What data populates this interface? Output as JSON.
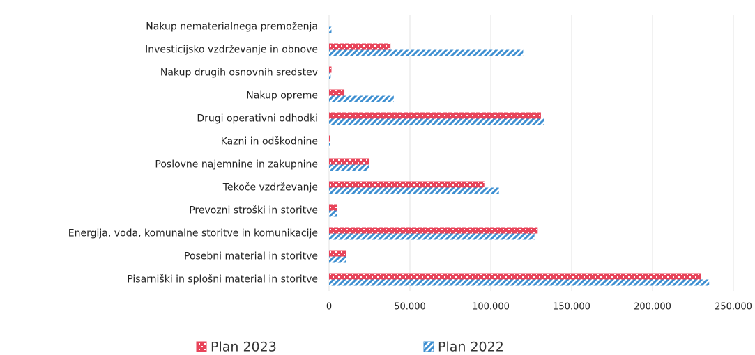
{
  "chart_data": {
    "type": "hbar",
    "categories": [
      "Nakup nematerialnega premoženja",
      "Investicijsko vzdrževanje in obnove",
      "Nakup drugih osnovnih sredstev",
      "Nakup opreme",
      "Drugi operativni odhodki",
      "Kazni in odškodnine",
      "Poslovne najemnine in zakupnine",
      "Tekoče vzdrževanje",
      "Prevozni stroški in storitve",
      "Energija, voda, komunalne storitve in komunikacije",
      "Posebni material in storitve",
      "Pisarniški in splošni material in storitve"
    ],
    "series": [
      {
        "name": "Plan 2023",
        "color": "#e8445a",
        "values": [
          0,
          38000,
          1500,
          9500,
          131000,
          500,
          25000,
          96000,
          5000,
          129000,
          10500,
          230000
        ]
      },
      {
        "name": "Plan 2022",
        "color": "#3d8fd1",
        "values": [
          1500,
          120000,
          1000,
          40000,
          133000,
          500,
          25000,
          105000,
          5000,
          127000,
          10500,
          235000
        ]
      }
    ],
    "xlim": [
      0,
      250000
    ],
    "xticks": [
      0,
      {
        "value": 50000,
        "label": "50.000"
      },
      {
        "value": 100000,
        "label": "100.000"
      },
      {
        "value": 150000,
        "label": "150.000"
      },
      {
        "value": 200000,
        "label": "200.000"
      },
      {
        "value": 250000,
        "label": "250.000"
      }
    ],
    "grid": true,
    "legend": "bottom"
  }
}
